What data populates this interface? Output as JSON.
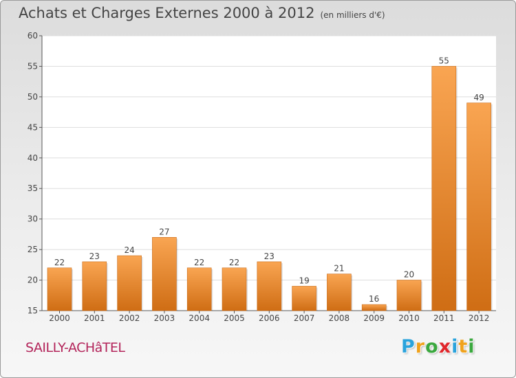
{
  "chart_data": {
    "type": "bar",
    "title": "Achats et Charges Externes 2000 à 2012",
    "subtitle": "(en milliers d'€)",
    "categories": [
      "2000",
      "2001",
      "2002",
      "2003",
      "2004",
      "2005",
      "2006",
      "2007",
      "2008",
      "2009",
      "2010",
      "2011",
      "2012"
    ],
    "values": [
      22,
      23,
      24,
      27,
      22,
      22,
      23,
      19,
      21,
      16,
      20,
      55,
      49
    ],
    "ylim": [
      15,
      60
    ],
    "yticks": [
      15,
      20,
      25,
      30,
      35,
      40,
      45,
      50,
      55,
      60
    ],
    "grid": true,
    "legend": "none",
    "bar_color_light": "#f9a552",
    "bar_color_dark": "#cf6d14"
  },
  "commune": "SAILLY-ACHâTEL",
  "logo": {
    "letters": [
      "P",
      "r",
      "o",
      "x",
      "i",
      "t",
      "i"
    ],
    "colors": [
      "#2aa3dc",
      "#f0a21c",
      "#3aa83e",
      "#e0262b",
      "#2aa3dc",
      "#f0a21c",
      "#3aa83e"
    ]
  }
}
